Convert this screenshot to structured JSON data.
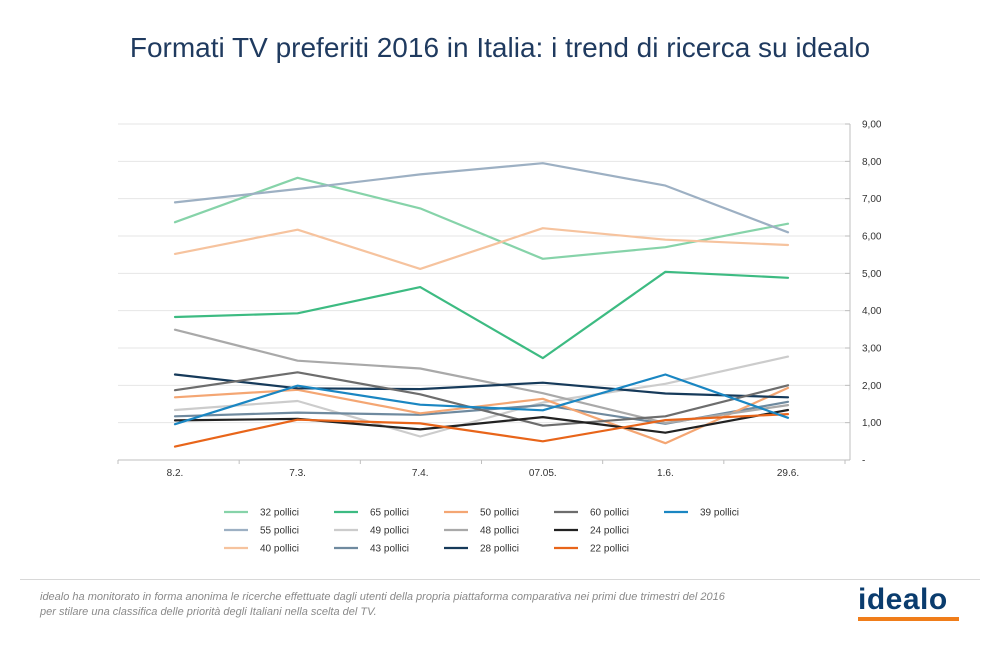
{
  "title": "Formati TV preferiti 2016 in Italia: i trend di ricerca su idealo",
  "footnote": [
    "idealo ha monitorato in forma anonima le ricerche effettuate dagli utenti della propria piattaforma comparativa nei primi due trimestri del 2016",
    "per stilare una classifica delle priorità degli Italiani nella scelta del TV."
  ],
  "logo": {
    "text": "idealo",
    "accent_color": "#f07d1a",
    "text_color": "#0a3c6e"
  },
  "chart_data": {
    "type": "line",
    "title": "Formati TV preferiti 2016 in Italia: i trend di ricerca su idealo",
    "xlabel": "",
    "ylabel": "",
    "categories": [
      "8.2.",
      "7.3.",
      "7.4.",
      "07.05.",
      "1.6.",
      "29.6."
    ],
    "ylim": [
      0,
      9
    ],
    "y_ticks": [
      "-",
      "1,00",
      "2,00",
      "3,00",
      "4,00",
      "5,00",
      "6,00",
      "7,00",
      "8,00",
      "9,00"
    ],
    "y_axis_side": "right",
    "grid": true,
    "legend_position": "bottom",
    "series": [
      {
        "name": "32 pollici",
        "color": "#86d3a9",
        "values": [
          6.37,
          7.56,
          6.74,
          5.39,
          5.7,
          6.33
        ]
      },
      {
        "name": "55 pollici",
        "color": "#9db0c3",
        "values": [
          6.9,
          7.26,
          7.65,
          7.95,
          7.35,
          6.1
        ]
      },
      {
        "name": "40 pollici",
        "color": "#f6c39e",
        "values": [
          5.52,
          6.17,
          5.12,
          6.21,
          5.9,
          5.76
        ]
      },
      {
        "name": "65 pollici",
        "color": "#3dbb82",
        "values": [
          3.83,
          3.93,
          4.63,
          2.73,
          5.04,
          4.88
        ]
      },
      {
        "name": "49 pollici",
        "color": "#cccccc",
        "values": [
          1.34,
          1.58,
          0.63,
          1.54,
          2.04,
          2.77
        ]
      },
      {
        "name": "43 pollici",
        "color": "#6f8a9f",
        "values": [
          1.17,
          1.27,
          1.21,
          1.47,
          0.97,
          1.56
        ]
      },
      {
        "name": "50 pollici",
        "color": "#f4a673",
        "values": [
          1.68,
          1.88,
          1.25,
          1.64,
          0.45,
          1.93
        ]
      },
      {
        "name": "48 pollici",
        "color": "#a9a9a9",
        "values": [
          3.49,
          2.66,
          2.45,
          1.79,
          0.99,
          1.47
        ]
      },
      {
        "name": "28 pollici",
        "color": "#163a5a",
        "values": [
          2.29,
          1.92,
          1.9,
          2.07,
          1.78,
          1.68
        ]
      },
      {
        "name": "60 pollici",
        "color": "#6d6d6d",
        "values": [
          1.87,
          2.35,
          1.76,
          0.92,
          1.17,
          2.0
        ]
      },
      {
        "name": "24 pollici",
        "color": "#222222",
        "values": [
          1.06,
          1.1,
          0.82,
          1.15,
          0.73,
          1.34
        ]
      },
      {
        "name": "22 pollici",
        "color": "#e8651a",
        "values": [
          0.36,
          1.08,
          0.98,
          0.5,
          1.07,
          1.23
        ]
      },
      {
        "name": "39 pollici",
        "color": "#1a86c2",
        "values": [
          0.96,
          1.99,
          1.48,
          1.33,
          2.29,
          1.13
        ]
      }
    ]
  }
}
